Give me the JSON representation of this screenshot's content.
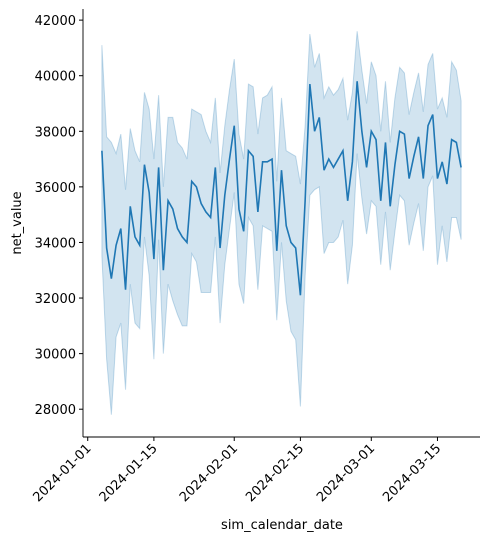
{
  "chart_data": {
    "type": "line",
    "x_label": "sim_calendar_date",
    "y_label": "net_value",
    "color": "#1f77b4",
    "x": [
      "2024-01-04",
      "2024-01-05",
      "2024-01-06",
      "2024-01-07",
      "2024-01-08",
      "2024-01-09",
      "2024-01-10",
      "2024-01-11",
      "2024-01-12",
      "2024-01-13",
      "2024-01-14",
      "2024-01-15",
      "2024-01-16",
      "2024-01-17",
      "2024-01-18",
      "2024-01-19",
      "2024-01-20",
      "2024-01-21",
      "2024-01-22",
      "2024-01-23",
      "2024-01-24",
      "2024-01-25",
      "2024-01-26",
      "2024-01-27",
      "2024-01-28",
      "2024-01-29",
      "2024-01-30",
      "2024-01-31",
      "2024-02-01",
      "2024-02-02",
      "2024-02-03",
      "2024-02-04",
      "2024-02-05",
      "2024-02-06",
      "2024-02-07",
      "2024-02-08",
      "2024-02-09",
      "2024-02-10",
      "2024-02-11",
      "2024-02-12",
      "2024-02-13",
      "2024-02-14",
      "2024-02-15",
      "2024-02-16",
      "2024-02-17",
      "2024-02-18",
      "2024-02-19",
      "2024-02-20",
      "2024-02-21",
      "2024-02-22",
      "2024-02-23",
      "2024-02-24",
      "2024-02-25",
      "2024-02-26",
      "2024-02-27",
      "2024-02-28",
      "2024-02-29",
      "2024-03-01",
      "2024-03-02",
      "2024-03-03",
      "2024-03-04",
      "2024-03-05",
      "2024-03-06",
      "2024-03-07",
      "2024-03-08",
      "2024-03-09",
      "2024-03-10",
      "2024-03-11",
      "2024-03-12",
      "2024-03-13",
      "2024-03-14",
      "2024-03-15",
      "2024-03-16",
      "2024-03-17",
      "2024-03-18",
      "2024-03-19",
      "2024-03-20"
    ],
    "values": [
      37300,
      33800,
      32700,
      33900,
      34500,
      32300,
      35300,
      34200,
      33900,
      36800,
      35800,
      33400,
      36700,
      33000,
      35500,
      35200,
      34500,
      34200,
      34000,
      36200,
      36000,
      35400,
      35100,
      34900,
      36700,
      33800,
      35700,
      37000,
      38200,
      35200,
      34400,
      37300,
      37100,
      35100,
      36900,
      36900,
      37000,
      33700,
      36600,
      34600,
      34000,
      33800,
      32100,
      35500,
      39700,
      38000,
      38500,
      36600,
      37000,
      36700,
      37000,
      37300,
      35500,
      36900,
      39800,
      38000,
      36700,
      38000,
      37700,
      35500,
      37600,
      35300,
      36800,
      38000,
      37900,
      36300,
      37100,
      37800,
      36300,
      38200,
      38600,
      36300,
      36900,
      36100,
      37700,
      37600,
      36700
    ],
    "ci_lower": [
      33500,
      29800,
      27800,
      30600,
      31100,
      28700,
      32500,
      31100,
      30900,
      34200,
      32800,
      29800,
      34100,
      30000,
      32500,
      31900,
      31400,
      31000,
      31000,
      33600,
      33300,
      32200,
      32200,
      32200,
      34200,
      31100,
      33200,
      34500,
      35800,
      32500,
      31800,
      34900,
      34600,
      32300,
      34600,
      34500,
      34400,
      31200,
      34000,
      31900,
      30800,
      30500,
      28100,
      32800,
      35700,
      35900,
      36000,
      33600,
      34000,
      34000,
      34200,
      34800,
      32500,
      33900,
      37200,
      35600,
      34300,
      35500,
      35300,
      33200,
      35100,
      33000,
      34400,
      35700,
      35500,
      33900,
      34700,
      35400,
      33700,
      36000,
      36400,
      33200,
      34600,
      33300,
      34900,
      34900,
      34100
    ],
    "ci_upper": [
      41100,
      37800,
      37600,
      37200,
      37900,
      35900,
      38100,
      37300,
      36900,
      39400,
      38800,
      37000,
      39300,
      36000,
      38500,
      38500,
      37600,
      37400,
      37000,
      38800,
      38700,
      38600,
      38000,
      37600,
      39200,
      36500,
      38200,
      39500,
      40600,
      37900,
      37000,
      39700,
      39600,
      37900,
      39200,
      39300,
      39600,
      36200,
      39200,
      37300,
      37200,
      37100,
      36100,
      38200,
      41500,
      40300,
      40800,
      39200,
      39600,
      39300,
      39500,
      39900,
      38400,
      39400,
      41600,
      40200,
      39000,
      40500,
      40000,
      38000,
      39800,
      37600,
      39200,
      40300,
      40100,
      38600,
      39400,
      40100,
      38700,
      40400,
      40800,
      38800,
      39200,
      38500,
      40500,
      40200,
      39100
    ],
    "xlim": [
      "2023-12-31",
      "2024-03-24"
    ],
    "xticks": [
      "2024-01-01",
      "2024-01-15",
      "2024-02-01",
      "2024-02-15",
      "2024-03-01",
      "2024-03-15"
    ],
    "ylim": [
      27000,
      42400
    ],
    "yticks": [
      28000,
      30000,
      32000,
      34000,
      36000,
      38000,
      40000,
      42000
    ]
  }
}
